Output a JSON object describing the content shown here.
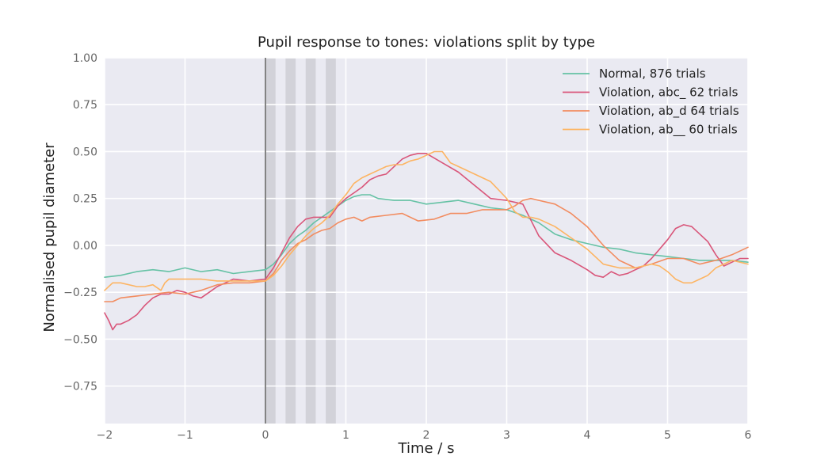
{
  "chart_data": {
    "type": "line",
    "title": "Pupil response to tones: violations split by type",
    "xlabel": "Time / s",
    "ylabel": "Normalised pupil diameter",
    "xlim": [
      -2,
      6
    ],
    "ylim": [
      -0.95,
      1.0
    ],
    "xticks": [
      -2,
      -1,
      0,
      1,
      2,
      3,
      4,
      5,
      6
    ],
    "xtick_labels": [
      "−2",
      "−1",
      "0",
      "1",
      "2",
      "3",
      "4",
      "5",
      "6"
    ],
    "yticks": [
      -0.75,
      -0.5,
      -0.25,
      0.0,
      0.25,
      0.5,
      0.75,
      1.0
    ],
    "ytick_labels": [
      "−0.75",
      "−0.50",
      "−0.25",
      "0.00",
      "0.25",
      "0.50",
      "0.75",
      "1.00"
    ],
    "grid": true,
    "legend_position": "top-right",
    "vertical_line": {
      "x": 0,
      "color": "#777777"
    },
    "shaded_bands": [
      {
        "x0": 0.0,
        "x1": 0.125
      },
      {
        "x0": 0.25,
        "x1": 0.375
      },
      {
        "x0": 0.5,
        "x1": 0.625
      },
      {
        "x0": 0.75,
        "x1": 0.875
      }
    ],
    "colors": {
      "background": "#EAEAF2",
      "grid": "#FFFFFF",
      "band": "#BDBDC4"
    },
    "series": [
      {
        "name": "Normal,      876 trials",
        "color": "#66C2A5",
        "x": [
          -2.0,
          -1.8,
          -1.6,
          -1.4,
          -1.2,
          -1.0,
          -0.8,
          -0.6,
          -0.4,
          -0.2,
          0.0,
          0.1,
          0.2,
          0.3,
          0.4,
          0.5,
          0.6,
          0.7,
          0.8,
          0.9,
          1.0,
          1.1,
          1.2,
          1.3,
          1.4,
          1.6,
          1.8,
          2.0,
          2.2,
          2.4,
          2.6,
          2.8,
          3.0,
          3.2,
          3.4,
          3.6,
          3.8,
          4.0,
          4.2,
          4.4,
          4.6,
          4.8,
          5.0,
          5.2,
          5.4,
          5.6,
          5.8,
          6.0
        ],
        "y": [
          -0.17,
          -0.16,
          -0.14,
          -0.13,
          -0.14,
          -0.12,
          -0.14,
          -0.13,
          -0.15,
          -0.14,
          -0.13,
          -0.1,
          -0.05,
          0.01,
          0.05,
          0.08,
          0.12,
          0.15,
          0.18,
          0.21,
          0.24,
          0.26,
          0.27,
          0.27,
          0.25,
          0.24,
          0.24,
          0.22,
          0.23,
          0.24,
          0.22,
          0.2,
          0.19,
          0.16,
          0.12,
          0.06,
          0.03,
          0.01,
          -0.01,
          -0.02,
          -0.04,
          -0.05,
          -0.06,
          -0.07,
          -0.08,
          -0.08,
          -0.08,
          -0.09
        ]
      },
      {
        "name": "Violation, abc_ 62 trials",
        "color": "#D9567A",
        "x": [
          -2.0,
          -1.95,
          -1.9,
          -1.85,
          -1.8,
          -1.7,
          -1.6,
          -1.5,
          -1.4,
          -1.3,
          -1.2,
          -1.1,
          -1.0,
          -0.9,
          -0.8,
          -0.7,
          -0.6,
          -0.5,
          -0.4,
          -0.2,
          0.0,
          0.1,
          0.2,
          0.3,
          0.4,
          0.5,
          0.6,
          0.8,
          0.9,
          1.0,
          1.1,
          1.2,
          1.3,
          1.4,
          1.5,
          1.6,
          1.7,
          1.8,
          1.9,
          2.0,
          2.2,
          2.4,
          2.6,
          2.8,
          3.0,
          3.2,
          3.4,
          3.6,
          3.8,
          4.0,
          4.1,
          4.2,
          4.3,
          4.4,
          4.5,
          4.6,
          4.7,
          4.8,
          4.9,
          5.0,
          5.1,
          5.2,
          5.3,
          5.4,
          5.5,
          5.6,
          5.7,
          5.8,
          5.9,
          6.0
        ],
        "y": [
          -0.36,
          -0.4,
          -0.45,
          -0.42,
          -0.42,
          -0.4,
          -0.37,
          -0.32,
          -0.28,
          -0.26,
          -0.26,
          -0.24,
          -0.25,
          -0.27,
          -0.28,
          -0.25,
          -0.22,
          -0.2,
          -0.18,
          -0.19,
          -0.18,
          -0.12,
          -0.04,
          0.04,
          0.1,
          0.14,
          0.15,
          0.15,
          0.21,
          0.25,
          0.28,
          0.31,
          0.35,
          0.37,
          0.38,
          0.42,
          0.46,
          0.48,
          0.49,
          0.49,
          0.44,
          0.39,
          0.32,
          0.25,
          0.24,
          0.22,
          0.05,
          -0.04,
          -0.08,
          -0.13,
          -0.16,
          -0.17,
          -0.14,
          -0.16,
          -0.15,
          -0.13,
          -0.11,
          -0.07,
          -0.02,
          0.03,
          0.09,
          0.11,
          0.1,
          0.06,
          0.02,
          -0.05,
          -0.11,
          -0.09,
          -0.07,
          -0.07
        ]
      },
      {
        "name": "Violation, ab_d 64 trials",
        "color": "#F28C60",
        "x": [
          -2.0,
          -1.9,
          -1.8,
          -1.6,
          -1.4,
          -1.2,
          -1.0,
          -0.8,
          -0.6,
          -0.4,
          -0.2,
          0.0,
          0.1,
          0.2,
          0.3,
          0.4,
          0.5,
          0.6,
          0.7,
          0.8,
          0.9,
          1.0,
          1.1,
          1.2,
          1.3,
          1.5,
          1.7,
          1.9,
          2.1,
          2.3,
          2.5,
          2.7,
          2.9,
          3.0,
          3.1,
          3.2,
          3.3,
          3.4,
          3.6,
          3.8,
          4.0,
          4.2,
          4.4,
          4.6,
          4.8,
          5.0,
          5.2,
          5.4,
          5.6,
          5.8,
          6.0
        ],
        "y": [
          -0.3,
          -0.3,
          -0.28,
          -0.27,
          -0.26,
          -0.25,
          -0.26,
          -0.24,
          -0.21,
          -0.2,
          -0.2,
          -0.19,
          -0.15,
          -0.08,
          -0.03,
          0.01,
          0.03,
          0.06,
          0.08,
          0.09,
          0.12,
          0.14,
          0.15,
          0.13,
          0.15,
          0.16,
          0.17,
          0.13,
          0.14,
          0.17,
          0.17,
          0.19,
          0.19,
          0.19,
          0.21,
          0.24,
          0.25,
          0.24,
          0.22,
          0.17,
          0.1,
          0.0,
          -0.08,
          -0.12,
          -0.1,
          -0.07,
          -0.07,
          -0.1,
          -0.08,
          -0.05,
          -0.01
        ]
      },
      {
        "name": "Violation, ab__ 60 trials",
        "color": "#FDB462",
        "x": [
          -2.0,
          -1.9,
          -1.8,
          -1.6,
          -1.5,
          -1.4,
          -1.3,
          -1.25,
          -1.2,
          -1.0,
          -0.8,
          -0.6,
          -0.4,
          -0.2,
          0.0,
          0.1,
          0.2,
          0.3,
          0.4,
          0.5,
          0.6,
          0.7,
          0.8,
          0.9,
          1.0,
          1.1,
          1.2,
          1.3,
          1.4,
          1.5,
          1.6,
          1.7,
          1.8,
          1.9,
          2.0,
          2.1,
          2.2,
          2.3,
          2.4,
          2.6,
          2.8,
          3.0,
          3.1,
          3.2,
          3.3,
          3.4,
          3.6,
          3.8,
          4.0,
          4.2,
          4.4,
          4.6,
          4.8,
          4.9,
          5.0,
          5.1,
          5.2,
          5.3,
          5.4,
          5.5,
          5.6,
          5.8,
          6.0
        ],
        "y": [
          -0.24,
          -0.2,
          -0.2,
          -0.22,
          -0.22,
          -0.21,
          -0.24,
          -0.2,
          -0.18,
          -0.18,
          -0.18,
          -0.19,
          -0.19,
          -0.19,
          -0.19,
          -0.16,
          -0.11,
          -0.05,
          0.0,
          0.05,
          0.09,
          0.12,
          0.16,
          0.22,
          0.27,
          0.33,
          0.36,
          0.38,
          0.4,
          0.42,
          0.43,
          0.43,
          0.45,
          0.46,
          0.48,
          0.5,
          0.5,
          0.44,
          0.42,
          0.38,
          0.34,
          0.25,
          0.18,
          0.15,
          0.15,
          0.14,
          0.1,
          0.04,
          -0.02,
          -0.1,
          -0.12,
          -0.12,
          -0.1,
          -0.11,
          -0.14,
          -0.18,
          -0.2,
          -0.2,
          -0.18,
          -0.16,
          -0.12,
          -0.08,
          -0.1
        ]
      }
    ]
  }
}
